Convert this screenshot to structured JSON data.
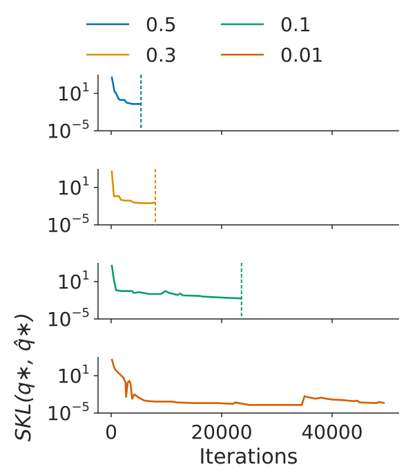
{
  "chart_data": {
    "type": "line",
    "xlabel": "Iterations",
    "ylabel": "SKL(q*, q̂*)",
    "xlim": [
      -3000,
      52000
    ],
    "x_ticks": [
      {
        "value": 0,
        "label": "0"
      },
      {
        "value": 20000,
        "label": "20000"
      },
      {
        "value": 40000,
        "label": "40000"
      }
    ],
    "yscale": "log",
    "ylim": [
      1e-05,
      10000.0
    ],
    "y_ticks": [
      {
        "value": 10,
        "base": "10",
        "exp": "1"
      },
      {
        "value": 1e-05,
        "base": "10",
        "exp": "−5"
      }
    ],
    "legend": {
      "placement": "top",
      "columns": 2,
      "entries": [
        "0.5",
        "0.1",
        "0.3",
        "0.01"
      ]
    },
    "grid": false,
    "series": [
      {
        "name": "0.5",
        "color": "#0173b2",
        "stop_iteration": 5400,
        "x": [
          100,
          600,
          900,
          1300,
          1600,
          2000,
          2400,
          2600,
          2900,
          3400,
          3800,
          4400,
          5000,
          5400
        ],
        "y": [
          5000,
          20,
          10,
          1.5,
          0.9,
          0.9,
          0.9,
          0.5,
          0.3,
          0.25,
          0.2,
          0.2,
          0.2,
          0.2
        ]
      },
      {
        "name": "0.3",
        "color": "#de8f05",
        "stop_iteration": 8000,
        "x": [
          100,
          500,
          1400,
          1800,
          2400,
          3500,
          4000,
          5500,
          6500,
          7500,
          7800,
          8000
        ],
        "y": [
          5000,
          0.4,
          0.4,
          0.1,
          0.08,
          0.08,
          0.04,
          0.03,
          0.03,
          0.03,
          0.04,
          0.03
        ]
      },
      {
        "name": "0.1",
        "color": "#029e73",
        "stop_iteration": 23600,
        "x": [
          100,
          500,
          900,
          2000,
          3800,
          4100,
          5000,
          7000,
          9000,
          9800,
          10500,
          12000,
          12500,
          13000,
          16000,
          16500,
          19000,
          21000,
          23600
        ],
        "y": [
          5000,
          20,
          0.4,
          0.3,
          0.3,
          0.15,
          0.2,
          0.1,
          0.1,
          0.3,
          0.15,
          0.07,
          0.12,
          0.06,
          0.05,
          0.04,
          0.03,
          0.025,
          0.02
        ]
      },
      {
        "name": "0.01",
        "color": "#d55e00",
        "stop_iteration": null,
        "x": [
          100,
          500,
          700,
          1500,
          2200,
          2600,
          2700,
          3000,
          3300,
          3500,
          3800,
          4200,
          5000,
          6000,
          7000,
          8000,
          11000,
          12000,
          15000,
          19000,
          22000,
          22500,
          25000,
          30000,
          34500,
          35000,
          36000,
          37000,
          38000,
          39000,
          40000,
          42000,
          44000,
          44500,
          45000,
          48000,
          48500,
          49500
        ],
        "y": [
          5000,
          300,
          100,
          20,
          5,
          0.8,
          0.004,
          0.8,
          1.5,
          0.5,
          0.002,
          0.01,
          0.003,
          0.001,
          0.0008,
          0.0007,
          0.0007,
          0.0005,
          0.0004,
          0.0004,
          0.0003,
          0.0005,
          0.0002,
          0.0002,
          0.0002,
          0.005,
          0.003,
          0.002,
          0.003,
          0.002,
          0.0015,
          0.0012,
          0.0008,
          0.001,
          0.0005,
          0.0004,
          0.0006,
          0.0004
        ]
      }
    ]
  }
}
